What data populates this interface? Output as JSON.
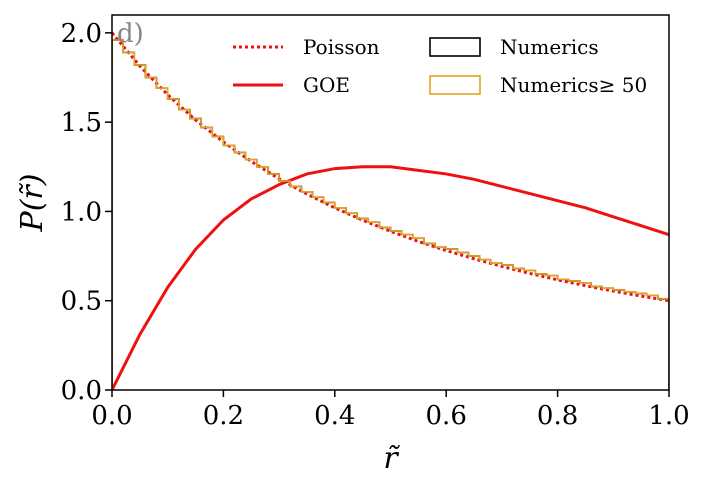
{
  "chart_data": {
    "type": "line",
    "panel_label": "d)",
    "title": "",
    "xlabel": "r̃",
    "ylabel": "P(r̃)",
    "xlim": [
      0.0,
      1.0
    ],
    "ylim": [
      0.0,
      2.1
    ],
    "xticks": [
      0.0,
      0.2,
      0.4,
      0.6,
      0.8,
      1.0
    ],
    "yticks": [
      0.0,
      0.5,
      1.0,
      1.5,
      2.0
    ],
    "xtick_labels": [
      "0.0",
      "0.2",
      "0.4",
      "0.6",
      "0.8",
      "1.0"
    ],
    "ytick_labels": [
      "0.0",
      "0.5",
      "1.0",
      "1.5",
      "2.0"
    ],
    "grid": false,
    "legend_placement": "top",
    "series": [
      {
        "name": "Poisson",
        "style": "dotted",
        "color": "#ee1111",
        "x": [
          0.0,
          0.05,
          0.1,
          0.15,
          0.2,
          0.25,
          0.3,
          0.35,
          0.4,
          0.45,
          0.5,
          0.55,
          0.6,
          0.65,
          0.7,
          0.75,
          0.8,
          0.85,
          0.9,
          0.95,
          1.0
        ],
        "y": [
          2.0,
          1.814,
          1.653,
          1.512,
          1.389,
          1.28,
          1.183,
          1.097,
          1.02,
          0.951,
          0.889,
          0.832,
          0.781,
          0.735,
          0.692,
          0.653,
          0.617,
          0.584,
          0.554,
          0.526,
          0.5
        ]
      },
      {
        "name": "GOE",
        "style": "solid",
        "color": "#ee1111",
        "x": [
          0.0,
          0.05,
          0.1,
          0.15,
          0.2,
          0.25,
          0.3,
          0.35,
          0.4,
          0.45,
          0.5,
          0.55,
          0.6,
          0.65,
          0.7,
          0.75,
          0.8,
          0.85,
          0.9,
          0.95,
          1.0
        ],
        "y": [
          0.0,
          0.311,
          0.575,
          0.788,
          0.952,
          1.07,
          1.15,
          1.21,
          1.24,
          1.25,
          1.25,
          1.23,
          1.21,
          1.18,
          1.14,
          1.1,
          1.06,
          1.02,
          0.97,
          0.92,
          0.87
        ]
      },
      {
        "name": "Numerics",
        "style": "step",
        "color": "#000000",
        "bin_width": 0.02,
        "x": [
          0.0,
          0.02,
          0.04,
          0.06,
          0.08,
          0.1,
          0.12,
          0.14,
          0.16,
          0.18,
          0.2,
          0.22,
          0.24,
          0.26,
          0.28,
          0.3,
          0.32,
          0.34,
          0.36,
          0.38,
          0.4,
          0.42,
          0.44,
          0.46,
          0.48,
          0.5,
          0.52,
          0.54,
          0.56,
          0.58,
          0.6,
          0.62,
          0.64,
          0.66,
          0.68,
          0.7,
          0.72,
          0.74,
          0.76,
          0.78,
          0.8,
          0.82,
          0.84,
          0.86,
          0.88,
          0.9,
          0.92,
          0.94,
          0.96,
          0.98
        ],
        "y": [
          1.96,
          1.89,
          1.82,
          1.75,
          1.69,
          1.63,
          1.57,
          1.52,
          1.47,
          1.42,
          1.37,
          1.33,
          1.29,
          1.25,
          1.21,
          1.17,
          1.14,
          1.11,
          1.08,
          1.05,
          1.02,
          0.99,
          0.96,
          0.94,
          0.91,
          0.89,
          0.87,
          0.85,
          0.82,
          0.8,
          0.79,
          0.77,
          0.75,
          0.73,
          0.71,
          0.7,
          0.68,
          0.67,
          0.65,
          0.64,
          0.62,
          0.61,
          0.6,
          0.58,
          0.57,
          0.56,
          0.55,
          0.54,
          0.53,
          0.51
        ]
      },
      {
        "name": "Numerics≥ 50",
        "style": "step",
        "color": "#e8a020",
        "bin_width": 0.02,
        "x": [
          0.0,
          0.02,
          0.04,
          0.06,
          0.08,
          0.1,
          0.12,
          0.14,
          0.16,
          0.18,
          0.2,
          0.22,
          0.24,
          0.26,
          0.28,
          0.3,
          0.32,
          0.34,
          0.36,
          0.38,
          0.4,
          0.42,
          0.44,
          0.46,
          0.48,
          0.5,
          0.52,
          0.54,
          0.56,
          0.58,
          0.6,
          0.62,
          0.64,
          0.66,
          0.68,
          0.7,
          0.72,
          0.74,
          0.76,
          0.78,
          0.8,
          0.82,
          0.84,
          0.86,
          0.88,
          0.9,
          0.92,
          0.94,
          0.96,
          0.98
        ],
        "y": [
          1.96,
          1.89,
          1.82,
          1.75,
          1.69,
          1.63,
          1.57,
          1.52,
          1.47,
          1.42,
          1.37,
          1.33,
          1.29,
          1.25,
          1.21,
          1.17,
          1.14,
          1.11,
          1.08,
          1.05,
          1.02,
          0.99,
          0.96,
          0.94,
          0.91,
          0.89,
          0.87,
          0.85,
          0.82,
          0.8,
          0.79,
          0.77,
          0.75,
          0.73,
          0.71,
          0.7,
          0.68,
          0.67,
          0.65,
          0.64,
          0.62,
          0.61,
          0.6,
          0.58,
          0.57,
          0.56,
          0.55,
          0.54,
          0.53,
          0.51
        ]
      }
    ]
  }
}
